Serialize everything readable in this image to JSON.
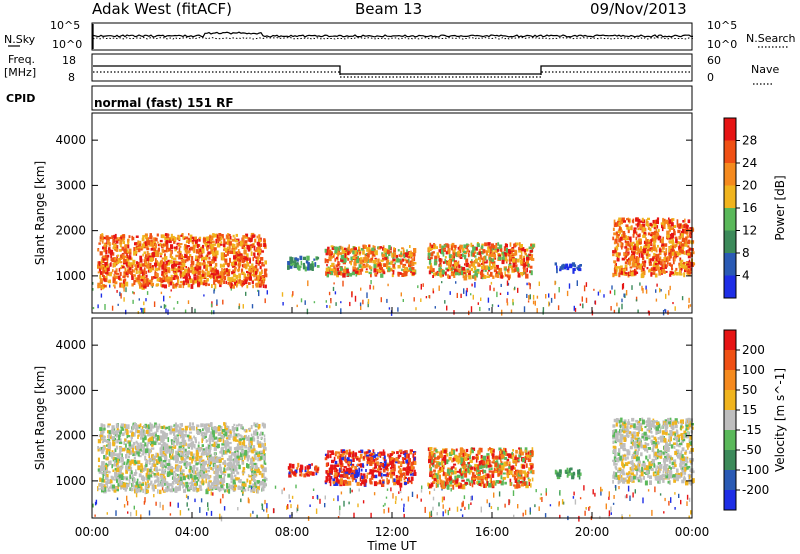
{
  "header": {
    "station": "Adak West (fitACF)",
    "beam": "Beam 13",
    "date": "09/Nov/2013"
  },
  "strip_labels": {
    "nsky": "N.Sky",
    "nsearch": "N.Search",
    "freq_line1": "Freq.",
    "freq_line2": "[MHz]",
    "nave": "Nave",
    "cpid": "CPID",
    "cpid_value": "normal (fast) 151 RF",
    "noise_ticks_left": [
      "10^5",
      "10^0"
    ],
    "noise_ticks_right": [
      "10^5",
      "10^0"
    ],
    "freq_ticks": [
      "18",
      "8"
    ],
    "nave_ticks": [
      "60",
      "0"
    ]
  },
  "axes": {
    "xlabel": "Time UT",
    "x_ticks": [
      "00:00",
      "04:00",
      "08:00",
      "12:00",
      "16:00",
      "20:00",
      "00:00"
    ],
    "ylabel": "Slant Range [km]",
    "y_ticks": [
      "1000",
      "2000",
      "3000",
      "4000"
    ]
  },
  "colorbars": {
    "power": {
      "label": "Power [dB]",
      "ticks": [
        "4",
        "8",
        "12",
        "16",
        "20",
        "24",
        "28"
      ],
      "colors": [
        "#1e2ee6",
        "#2a5ab4",
        "#3c8a5a",
        "#5ab85a",
        "#f0b41e",
        "#f58a1e",
        "#f05014",
        "#e61414"
      ]
    },
    "velocity": {
      "label": "Velocity [m s^-1]",
      "ticks": [
        "200",
        "100",
        "50",
        "15",
        "-15",
        "-50",
        "-100",
        "-200"
      ],
      "colors": [
        "#1e2ee6",
        "#2a5ab4",
        "#3c8a5a",
        "#5ab85a",
        "#bebebe",
        "#f0b41e",
        "#f58a1e",
        "#f05014",
        "#e61414"
      ]
    }
  },
  "chart_data": [
    {
      "type": "heatmap",
      "panel": "power",
      "x_unit": "hours UT",
      "y_unit": "km",
      "xlim": [
        0,
        24
      ],
      "ylim": [
        180,
        4600
      ],
      "series": [
        {
          "x0": 0.2,
          "x1": 6.9,
          "y0": 800,
          "y1": 1950,
          "dominant": "red-orange"
        },
        {
          "x0": 7.8,
          "x1": 9.0,
          "y0": 1200,
          "y1": 1450,
          "dominant": "blue-green"
        },
        {
          "x0": 9.3,
          "x1": 12.9,
          "y0": 1050,
          "y1": 1700,
          "dominant": "orange"
        },
        {
          "x0": 13.4,
          "x1": 17.6,
          "y0": 1000,
          "y1": 1750,
          "dominant": "orange"
        },
        {
          "x0": 18.5,
          "x1": 19.5,
          "y0": 1150,
          "y1": 1300,
          "dominant": "blue"
        },
        {
          "x0": 20.8,
          "x1": 24.0,
          "y0": 1050,
          "y1": 2300,
          "dominant": "orange-red"
        }
      ]
    },
    {
      "type": "heatmap",
      "panel": "velocity",
      "x_unit": "hours UT",
      "y_unit": "km",
      "xlim": [
        0,
        24
      ],
      "ylim": [
        180,
        4600
      ],
      "series": [
        {
          "x0": 0.2,
          "x1": 6.9,
          "y0": 800,
          "y1": 2300,
          "dominant": "grey"
        },
        {
          "x0": 7.8,
          "x1": 9.0,
          "y0": 1150,
          "y1": 1400,
          "dominant": "red"
        },
        {
          "x0": 9.3,
          "x1": 12.9,
          "y0": 950,
          "y1": 1700,
          "dominant": "red"
        },
        {
          "x0": 13.4,
          "x1": 17.6,
          "y0": 900,
          "y1": 1750,
          "dominant": "red-orange"
        },
        {
          "x0": 18.5,
          "x1": 19.5,
          "y0": 1100,
          "y1": 1300,
          "dominant": "green"
        },
        {
          "x0": 20.8,
          "x1": 24.0,
          "y0": 1000,
          "y1": 2400,
          "dominant": "grey"
        }
      ]
    }
  ]
}
